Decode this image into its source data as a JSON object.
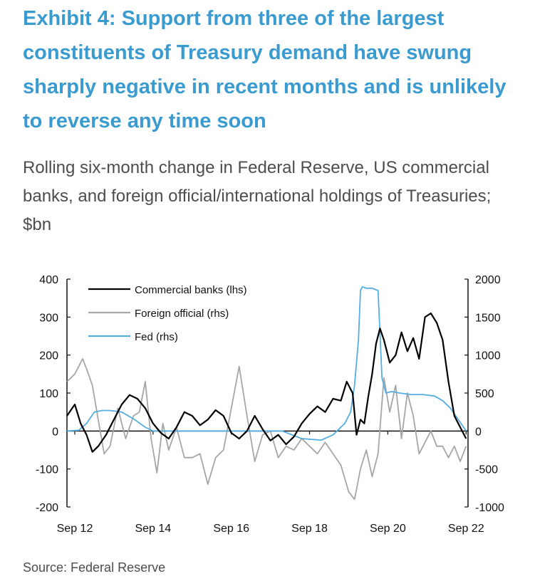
{
  "title": "Exhibit 4: Support from three of the largest constituents of Treasury demand have swung sharply negative in recent months and is unlikely to reverse any time soon",
  "subtitle": "Rolling six-month change in Federal Reserve, US commercial banks, and foreign official/international holdings of Treasuries; $bn",
  "source": "Source: Federal Reserve",
  "chart_data": {
    "type": "line",
    "title": "",
    "xlabel": "",
    "ylabel_left": "",
    "ylabel_right": "",
    "x_range": [
      2012.5,
      2022.75
    ],
    "x_ticks": [
      {
        "value": 2012.7,
        "label": "Sep 12"
      },
      {
        "value": 2014.7,
        "label": "Sep 14"
      },
      {
        "value": 2016.7,
        "label": "Sep 16"
      },
      {
        "value": 2018.7,
        "label": "Sep 18"
      },
      {
        "value": 2020.7,
        "label": "Sep 20"
      },
      {
        "value": 2022.7,
        "label": "Sep 22"
      }
    ],
    "y_left": {
      "min": -200,
      "max": 400,
      "ticks": [
        400,
        300,
        200,
        100,
        0,
        -100,
        -200
      ]
    },
    "y_right": {
      "min": -1000,
      "max": 2000,
      "ticks": [
        2000,
        1500,
        1000,
        500,
        0,
        -500,
        -1000
      ]
    },
    "legend_position": "top-left",
    "series": [
      {
        "name": "Commercial banks (lhs)",
        "axis": "left",
        "color": "#000000",
        "x": [
          2012.5,
          2012.7,
          2012.85,
          2013.0,
          2013.15,
          2013.3,
          2013.5,
          2013.7,
          2013.9,
          2014.1,
          2014.3,
          2014.5,
          2014.7,
          2014.9,
          2015.1,
          2015.3,
          2015.5,
          2015.7,
          2015.9,
          2016.1,
          2016.3,
          2016.5,
          2016.7,
          2016.9,
          2017.1,
          2017.3,
          2017.5,
          2017.7,
          2017.9,
          2018.1,
          2018.3,
          2018.5,
          2018.7,
          2018.9,
          2019.1,
          2019.3,
          2019.5,
          2019.65,
          2019.8,
          2019.9,
          2020.0,
          2020.1,
          2020.2,
          2020.3,
          2020.4,
          2020.5,
          2020.6,
          2020.75,
          2020.9,
          2021.05,
          2021.2,
          2021.35,
          2021.5,
          2021.65,
          2021.8,
          2021.95,
          2022.1,
          2022.25,
          2022.4,
          2022.55,
          2022.7
        ],
        "values": [
          40,
          70,
          20,
          -10,
          -55,
          -40,
          -10,
          30,
          70,
          95,
          85,
          60,
          20,
          -5,
          -20,
          10,
          50,
          40,
          15,
          30,
          55,
          40,
          -5,
          -20,
          0,
          40,
          5,
          -25,
          -10,
          -35,
          -15,
          20,
          45,
          65,
          50,
          85,
          80,
          130,
          100,
          -10,
          30,
          20,
          90,
          150,
          230,
          270,
          240,
          180,
          200,
          260,
          210,
          245,
          190,
          300,
          310,
          285,
          240,
          130,
          40,
          10,
          -20
        ]
      },
      {
        "name": "Foreign official (rhs)",
        "axis": "right",
        "color": "#a6a6a6",
        "x": [
          2012.5,
          2012.7,
          2012.9,
          2013.0,
          2013.15,
          2013.3,
          2013.45,
          2013.6,
          2013.8,
          2014.0,
          2014.2,
          2014.35,
          2014.5,
          2014.65,
          2014.8,
          2014.95,
          2015.1,
          2015.3,
          2015.5,
          2015.7,
          2015.9,
          2016.1,
          2016.3,
          2016.5,
          2016.7,
          2016.9,
          2017.1,
          2017.3,
          2017.5,
          2017.7,
          2017.9,
          2018.1,
          2018.3,
          2018.5,
          2018.7,
          2018.9,
          2019.1,
          2019.3,
          2019.5,
          2019.7,
          2019.85,
          2020.0,
          2020.15,
          2020.3,
          2020.45,
          2020.6,
          2020.75,
          2020.9,
          2021.05,
          2021.2,
          2021.35,
          2021.5,
          2021.65,
          2021.8,
          2021.95,
          2022.1,
          2022.25,
          2022.4,
          2022.55,
          2022.7
        ],
        "values": [
          650,
          750,
          950,
          820,
          600,
          150,
          -300,
          -200,
          300,
          -100,
          200,
          250,
          650,
          -100,
          -550,
          100,
          -250,
          50,
          -350,
          -350,
          -300,
          -700,
          -350,
          -250,
          300,
          850,
          200,
          -400,
          -50,
          0,
          -350,
          -200,
          -250,
          -100,
          -200,
          -300,
          -150,
          -300,
          -450,
          -800,
          -900,
          -500,
          -250,
          -600,
          -300,
          700,
          250,
          600,
          -100,
          500,
          200,
          -300,
          -150,
          0,
          -200,
          -200,
          -350,
          -200,
          -400,
          -200
        ]
      },
      {
        "name": "Fed (rhs)",
        "axis": "right",
        "color": "#55aee0",
        "x": [
          2012.5,
          2012.8,
          2013.0,
          2013.2,
          2013.4,
          2013.6,
          2013.9,
          2014.2,
          2014.5,
          2014.7,
          2015.0,
          2015.5,
          2016.0,
          2016.5,
          2017.0,
          2017.5,
          2018.0,
          2018.5,
          2019.0,
          2019.3,
          2019.6,
          2019.75,
          2019.85,
          2019.95,
          2020.0,
          2020.05,
          2020.15,
          2020.3,
          2020.45,
          2020.55,
          2020.65,
          2020.8,
          2021.0,
          2021.3,
          2021.6,
          2021.9,
          2022.1,
          2022.3,
          2022.5,
          2022.7
        ],
        "values": [
          0,
          10,
          100,
          250,
          270,
          270,
          250,
          160,
          50,
          0,
          0,
          0,
          0,
          0,
          0,
          0,
          0,
          -100,
          -120,
          -50,
          100,
          250,
          600,
          1200,
          1850,
          1900,
          1880,
          1880,
          1850,
          700,
          500,
          520,
          500,
          480,
          480,
          460,
          400,
          300,
          150,
          0
        ]
      }
    ]
  }
}
